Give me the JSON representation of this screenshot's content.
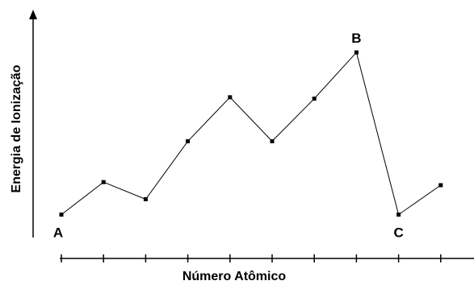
{
  "chart_data": {
    "type": "line",
    "title": "",
    "xlabel": "Número Atômico",
    "ylabel": "Energia de Ionização",
    "x": [
      1,
      2,
      3,
      4,
      5,
      6,
      7,
      8,
      9,
      10
    ],
    "values": [
      5.2,
      12.6,
      8.7,
      21.9,
      31.9,
      21.9,
      31.6,
      42.1,
      5.2,
      11.9
    ],
    "ylim": [
      0,
      50
    ],
    "point_labels": [
      "A",
      "",
      "",
      "",
      "",
      "",
      "",
      "B",
      "C",
      ""
    ],
    "grid": false,
    "axis_ticks": "x-axis only, unlabeled",
    "color": "#000000"
  }
}
